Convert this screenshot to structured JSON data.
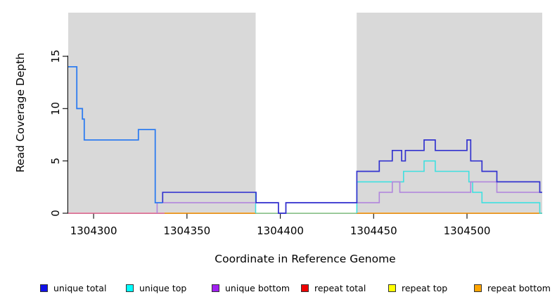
{
  "chart_data": {
    "type": "line",
    "style": "step",
    "title": "",
    "xlabel": "Coordinate in Reference Genome",
    "ylabel": "Read Coverage Depth",
    "grid": false,
    "legend_position": "bottom",
    "x_axis": {
      "min": 1304286.4,
      "max": 1304540.3,
      "ticks": [
        1304300,
        1304350,
        1304400,
        1304450,
        1304500
      ]
    },
    "y_axis": {
      "min": 0,
      "max": 19.2,
      "ticks": [
        0,
        5,
        10,
        15
      ]
    },
    "shaded_regions": [
      {
        "name": "shaded-region-left",
        "x0": 1304286.4,
        "x1": 1304386.8,
        "color": "#d9d9d9"
      },
      {
        "name": "shaded-region-right",
        "x0": 1304440.9,
        "x1": 1304540.3,
        "color": "#d9d9d9"
      }
    ],
    "legend": [
      {
        "label": "unique total",
        "color": "#1111e8"
      },
      {
        "label": "unique top",
        "color": "#00ffff"
      },
      {
        "label": "unique bottom",
        "color": "#a020f0"
      },
      {
        "label": "repeat total",
        "color": "#ee0000"
      },
      {
        "label": "repeat top",
        "color": "#ffff00"
      },
      {
        "label": "repeat bottom",
        "color": "#ffa500"
      }
    ],
    "lines": [
      {
        "name": "zero-line-left",
        "series": "repeat total (overlap at 0)",
        "color": "#ec6a96",
        "width": 1.5,
        "steps": [
          [
            1304286.4,
            0
          ],
          [
            1304338,
            0
          ]
        ]
      },
      {
        "name": "zero-line-mid",
        "series": "repeat bottom (at 0)",
        "color": "#ff9500",
        "width": 1.5,
        "steps": [
          [
            1304338,
            0
          ],
          [
            1304386.8,
            0
          ]
        ]
      },
      {
        "name": "zero-line-gap",
        "series": "unique top + repeat top (overlap at 0)",
        "color": "#8fce8f",
        "width": 1.5,
        "steps": [
          [
            1304386.8,
            0
          ],
          [
            1304440.9,
            0
          ]
        ]
      },
      {
        "name": "zero-line-right",
        "series": "repeat bottom (at 0)",
        "color": "#ff9500",
        "width": 1.5,
        "steps": [
          [
            1304440.9,
            0
          ],
          [
            1304540.3,
            0
          ]
        ]
      },
      {
        "name": "unique-top-gap-drop",
        "series": "unique top",
        "color": "#3fe0e0",
        "width": 1.5,
        "steps": [
          [
            1304386.8,
            2
          ],
          [
            1304386.8,
            0
          ]
        ]
      },
      {
        "name": "unique-top-main",
        "series": "unique top",
        "color": "#3fe0e0",
        "width": 1.6,
        "steps": [
          [
            1304441,
            0
          ],
          [
            1304441,
            3
          ],
          [
            1304466,
            4
          ],
          [
            1304477,
            5
          ],
          [
            1304483,
            4
          ],
          [
            1304501,
            3
          ],
          [
            1304503,
            2
          ],
          [
            1304508,
            1
          ],
          [
            1304539,
            0
          ],
          [
            1304540.3,
            0
          ]
        ]
      },
      {
        "name": "unique-bottom-main",
        "series": "unique bottom",
        "color": "#b186dd",
        "width": 1.6,
        "steps": [
          [
            1304334,
            0
          ],
          [
            1304334,
            1
          ],
          [
            1304399,
            0
          ],
          [
            1304403,
            1
          ],
          [
            1304453,
            2
          ],
          [
            1304460,
            3
          ],
          [
            1304464,
            2
          ],
          [
            1304502,
            3
          ],
          [
            1304516,
            2
          ],
          [
            1304540.3,
            2
          ]
        ]
      },
      {
        "name": "unique-total-main",
        "series": "unique total",
        "color": "#3333cf",
        "width": 1.7,
        "steps": [
          [
            1304337,
            1
          ],
          [
            1304337,
            2
          ],
          [
            1304387,
            1
          ],
          [
            1304399,
            0
          ],
          [
            1304403,
            1
          ],
          [
            1304441,
            4
          ],
          [
            1304453,
            5
          ],
          [
            1304460,
            6
          ],
          [
            1304465,
            5
          ],
          [
            1304467,
            6
          ],
          [
            1304477,
            7
          ],
          [
            1304483,
            6
          ],
          [
            1304500,
            7
          ],
          [
            1304502,
            5
          ],
          [
            1304508,
            4
          ],
          [
            1304516,
            3
          ],
          [
            1304539,
            2
          ],
          [
            1304540.3,
            2
          ]
        ]
      },
      {
        "name": "unique-total-left-overlap",
        "series": "unique total + unique top (overlap)",
        "color": "#2e7cf0",
        "width": 1.8,
        "steps": [
          [
            1304286.4,
            14
          ],
          [
            1304291,
            10
          ],
          [
            1304294,
            9
          ],
          [
            1304295,
            7
          ],
          [
            1304324,
            8
          ],
          [
            1304333,
            1
          ],
          [
            1304337,
            1
          ]
        ]
      }
    ]
  }
}
